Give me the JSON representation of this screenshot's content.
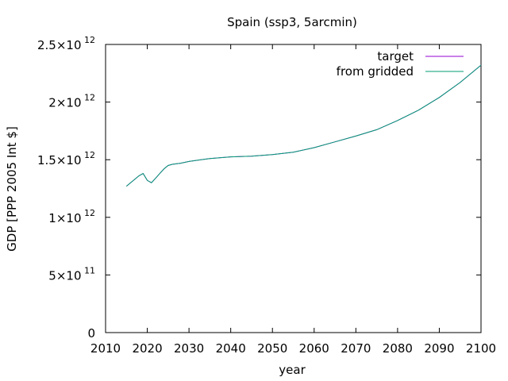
{
  "chart_data": {
    "type": "line",
    "title": "Spain (ssp3, 5arcmin)",
    "xlabel": "year",
    "ylabel": "GDP [PPP 2005 Int $]",
    "xlim": [
      2010,
      2100
    ],
    "ylim": [
      0,
      2500000000000
    ],
    "x_ticks": [
      "2010",
      "2020",
      "2030",
      "2040",
      "2050",
      "2060",
      "2070",
      "2080",
      "2090",
      "2100"
    ],
    "x_tick_values": [
      2010,
      2020,
      2030,
      2040,
      2050,
      2060,
      2070,
      2080,
      2090,
      2100
    ],
    "y_ticks": [
      {
        "value": 0,
        "mantissa": "0",
        "exponent": ""
      },
      {
        "value": 500000000000,
        "mantissa": "5×10",
        "exponent": "11"
      },
      {
        "value": 1000000000000,
        "mantissa": "1×10",
        "exponent": "12"
      },
      {
        "value": 1500000000000,
        "mantissa": "1.5×10",
        "exponent": "12"
      },
      {
        "value": 2000000000000,
        "mantissa": "2×10",
        "exponent": "12"
      },
      {
        "value": 2500000000000,
        "mantissa": "2.5×10",
        "exponent": "12"
      }
    ],
    "legend_position": "top-right",
    "grid": false,
    "series": [
      {
        "name": "target",
        "color": "#9400d3",
        "x": [
          2015,
          2016,
          2017,
          2018,
          2019,
          2020,
          2021,
          2022,
          2023,
          2024,
          2025,
          2026,
          2028,
          2030,
          2035,
          2040,
          2045,
          2050,
          2055,
          2060,
          2065,
          2070,
          2075,
          2080,
          2085,
          2090,
          2095,
          2100
        ],
        "y": [
          1270000000000,
          1300000000000,
          1330000000000,
          1360000000000,
          1380000000000,
          1320000000000,
          1300000000000,
          1340000000000,
          1380000000000,
          1420000000000,
          1450000000000,
          1460000000000,
          1470000000000,
          1485000000000,
          1510000000000,
          1525000000000,
          1530000000000,
          1545000000000,
          1565000000000,
          1605000000000,
          1655000000000,
          1705000000000,
          1760000000000,
          1840000000000,
          1930000000000,
          2040000000000,
          2170000000000,
          2320000000000
        ]
      },
      {
        "name": "from gridded",
        "color": "#009e73",
        "x": [
          2015,
          2016,
          2017,
          2018,
          2019,
          2020,
          2021,
          2022,
          2023,
          2024,
          2025,
          2026,
          2028,
          2030,
          2035,
          2040,
          2045,
          2050,
          2055,
          2060,
          2065,
          2070,
          2075,
          2080,
          2085,
          2090,
          2095,
          2100
        ],
        "y": [
          1270000000000,
          1300000000000,
          1330000000000,
          1360000000000,
          1380000000000,
          1320000000000,
          1300000000000,
          1340000000000,
          1380000000000,
          1420000000000,
          1450000000000,
          1460000000000,
          1470000000000,
          1485000000000,
          1510000000000,
          1525000000000,
          1530000000000,
          1545000000000,
          1565000000000,
          1605000000000,
          1655000000000,
          1705000000000,
          1760000000000,
          1840000000000,
          1930000000000,
          2040000000000,
          2170000000000,
          2320000000000
        ]
      }
    ]
  }
}
